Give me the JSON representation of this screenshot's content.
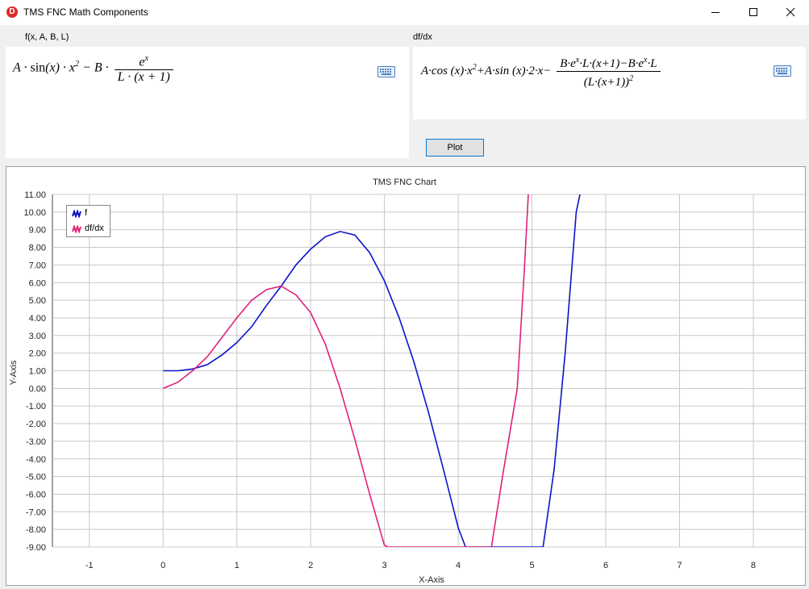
{
  "window": {
    "title": "TMS FNC Math Components",
    "icon": "delphi-app-icon",
    "icon_letter": "D"
  },
  "function_panel": {
    "label": "f(x, A, B, L)",
    "formula_parts": {
      "A": "A",
      "dot": "·",
      "sin": "sin(x)",
      "x": "x",
      "sq": "2",
      "minus": "−",
      "B": "B",
      "num": "e",
      "num_sup": "x",
      "den": "L · (x + 1)"
    },
    "keyboard_icon": "keyboard-icon"
  },
  "derivative_panel": {
    "label": "df/dx",
    "formula_left": "A·cos (x)·x",
    "sq": "2",
    "formula_mid": "+A·sin (x)·2·x−",
    "num": "B·e",
    "num_sup": "x",
    "num_rest": "·L·(x+1)−B·e",
    "num_sup2": "x",
    "num_end": "·L",
    "den": "(L·(x+1))",
    "den_sup": "2",
    "keyboard_icon": "keyboard-icon"
  },
  "plot_button": {
    "label": "Plot"
  },
  "colors": {
    "f": "#0b14c8",
    "dfdx": "#e0207a",
    "grid": "#c8c8c8",
    "accent": "#0078d7"
  },
  "chart_data": {
    "type": "line",
    "title": "TMS FNC Chart",
    "xlabel": "X-Axis",
    "ylabel": "Y-Axis",
    "xlim": [
      -1.5,
      8.7
    ],
    "ylim": [
      -9,
      11
    ],
    "x_ticks": [
      -1,
      0,
      1,
      2,
      3,
      4,
      5,
      6,
      7,
      8
    ],
    "y_ticks": [
      "11.00",
      "10.00",
      "9.00",
      "8.00",
      "7.00",
      "6.00",
      "5.00",
      "4.00",
      "3.00",
      "2.00",
      "1.00",
      "0.00",
      "-1.00",
      "-2.00",
      "-3.00",
      "-4.00",
      "-5.00",
      "-6.00",
      "-7.00",
      "-8.00",
      "-9.00"
    ],
    "grid": true,
    "legend_position": "top-left",
    "series": [
      {
        "name": "f",
        "color": "#0b14c8",
        "points": [
          [
            0,
            1.0
          ],
          [
            0.2,
            1.0
          ],
          [
            0.4,
            1.1
          ],
          [
            0.6,
            1.35
          ],
          [
            0.8,
            1.9
          ],
          [
            1.0,
            2.6
          ],
          [
            1.2,
            3.5
          ],
          [
            1.4,
            4.7
          ],
          [
            1.6,
            5.8
          ],
          [
            1.8,
            7.0
          ],
          [
            2.0,
            7.9
          ],
          [
            2.2,
            8.6
          ],
          [
            2.4,
            8.9
          ],
          [
            2.6,
            8.7
          ],
          [
            2.8,
            7.7
          ],
          [
            3.0,
            6.1
          ],
          [
            3.2,
            4.0
          ],
          [
            3.4,
            1.5
          ],
          [
            3.6,
            -1.4
          ],
          [
            3.8,
            -4.6
          ],
          [
            4.0,
            -7.9
          ],
          [
            4.1,
            -9.0
          ],
          [
            5.15,
            -9.0
          ],
          [
            5.3,
            -4.6
          ],
          [
            5.45,
            2.0
          ],
          [
            5.6,
            10.0
          ],
          [
            5.65,
            11.0
          ]
        ]
      },
      {
        "name": "df/dx",
        "color": "#e0207a",
        "points": [
          [
            0,
            0.0
          ],
          [
            0.2,
            0.35
          ],
          [
            0.4,
            1.0
          ],
          [
            0.6,
            1.8
          ],
          [
            0.8,
            2.9
          ],
          [
            1.0,
            4.0
          ],
          [
            1.2,
            5.0
          ],
          [
            1.4,
            5.6
          ],
          [
            1.6,
            5.8
          ],
          [
            1.8,
            5.3
          ],
          [
            2.0,
            4.3
          ],
          [
            2.2,
            2.5
          ],
          [
            2.4,
            0.0
          ],
          [
            2.6,
            -2.9
          ],
          [
            2.8,
            -6.0
          ],
          [
            3.0,
            -8.9
          ],
          [
            3.05,
            -9.0
          ],
          [
            4.45,
            -9.0
          ],
          [
            4.6,
            -5.0
          ],
          [
            4.8,
            0.0
          ],
          [
            4.9,
            7.0
          ],
          [
            4.95,
            11.0
          ]
        ]
      }
    ]
  }
}
